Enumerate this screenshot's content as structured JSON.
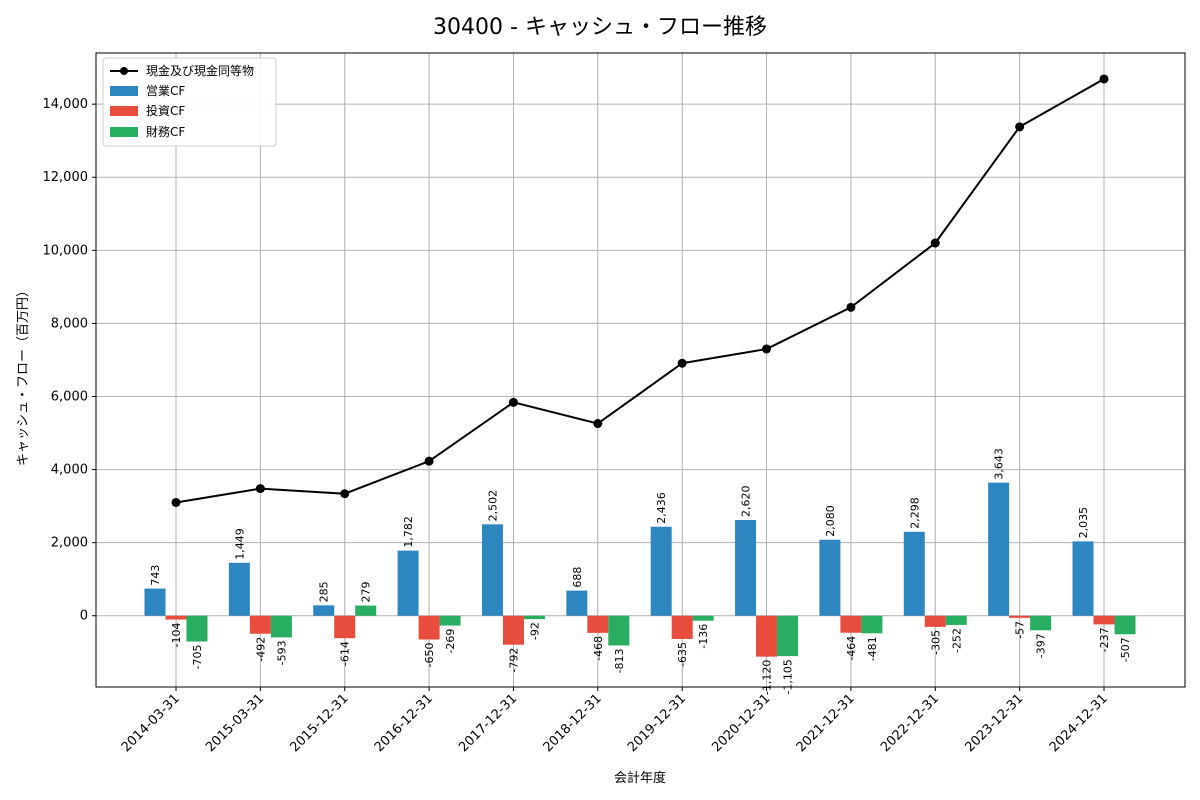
{
  "chart_data": {
    "type": "bar",
    "title": "30400 - キャッシュ・フロー推移",
    "xlabel": "会計年度",
    "ylabel": "キャッシュ・フロー（百万円）",
    "categories": [
      "2014-03-31",
      "2015-03-31",
      "2015-12-31",
      "2016-12-31",
      "2017-12-31",
      "2018-12-31",
      "2019-12-31",
      "2020-12-31",
      "2021-12-31",
      "2022-12-31",
      "2023-12-31",
      "2024-12-31"
    ],
    "ylim": [
      -1950,
      15400
    ],
    "yticks": [
      0,
      2000,
      4000,
      6000,
      8000,
      10000,
      12000,
      14000
    ],
    "ytick_labels": [
      "0",
      "2,000",
      "4,000",
      "6,000",
      "8,000",
      "10,000",
      "12,000",
      "14,000"
    ],
    "grid": true,
    "legend_position": "top-left",
    "series": [
      {
        "name": "営業CF",
        "kind": "bar",
        "color": "#2e86c1",
        "values": [
          743,
          1449,
          285,
          1782,
          2502,
          688,
          2436,
          2620,
          2080,
          2298,
          3643,
          2035
        ],
        "labels": [
          "743",
          "1,449",
          "285",
          "1,782",
          "2,502",
          "688",
          "2,436",
          "2,620",
          "2,080",
          "2,298",
          "3,643",
          "2,035"
        ]
      },
      {
        "name": "投資CF",
        "kind": "bar",
        "color": "#e74c3c",
        "values": [
          -104,
          -492,
          -614,
          -650,
          -792,
          -468,
          -635,
          -1120,
          -464,
          -305,
          -57,
          -237
        ],
        "labels": [
          "-104",
          "-492",
          "-614",
          "-650",
          "-792",
          "-468",
          "-635",
          "-1,120",
          "-464",
          "-305",
          "-57",
          "-237"
        ]
      },
      {
        "name": "財務CF",
        "kind": "bar",
        "color": "#27ae60",
        "values": [
          -705,
          -593,
          279,
          -269,
          -92,
          -813,
          -136,
          -1105,
          -481,
          -252,
          -397,
          -507
        ],
        "labels": [
          "-705",
          "-593",
          "279",
          "-269",
          "-92",
          "-813",
          "-136",
          "-1,105",
          "-481",
          "-252",
          "-397",
          "-507"
        ]
      },
      {
        "name": "現金及び現金同等物",
        "kind": "line",
        "color": "#000000",
        "values": [
          3100,
          3480,
          3340,
          4230,
          5840,
          5260,
          6910,
          7300,
          8440,
          10200,
          13380,
          14690
        ]
      }
    ]
  }
}
